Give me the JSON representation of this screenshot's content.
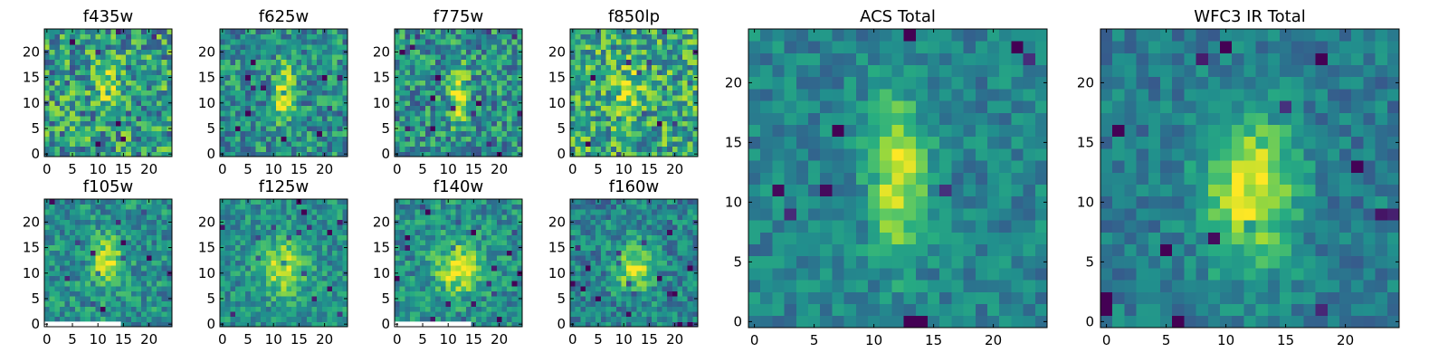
{
  "chart_data": [
    {
      "type": "heatmap",
      "title": "f435w",
      "grid": "25x25",
      "xlim": [
        -0.5,
        24.5
      ],
      "ylim": [
        -0.5,
        24.5
      ],
      "xticks": [
        0,
        5,
        10,
        15,
        20
      ],
      "yticks": [
        0,
        5,
        10,
        15,
        20
      ],
      "source": {
        "cx": 12,
        "cy": 14,
        "sx": 1.6,
        "sy": 3.0,
        "amp": 0.3
      },
      "noise": 0.32,
      "base": 0.55,
      "seed": 11,
      "colormap": "viridis"
    },
    {
      "type": "heatmap",
      "title": "f625w",
      "grid": "25x25",
      "xlim": [
        -0.5,
        24.5
      ],
      "ylim": [
        -0.5,
        24.5
      ],
      "xticks": [
        0,
        5,
        10,
        15,
        20
      ],
      "yticks": [
        0,
        5,
        10,
        15,
        20
      ],
      "source": {
        "cx": 12,
        "cy": 12,
        "sx": 1.3,
        "sy": 4.0,
        "amp": 0.5
      },
      "noise": 0.25,
      "base": 0.5,
      "seed": 23,
      "colormap": "viridis"
    },
    {
      "type": "heatmap",
      "title": "f775w",
      "grid": "25x25",
      "xlim": [
        -0.5,
        24.5
      ],
      "ylim": [
        -0.5,
        24.5
      ],
      "xticks": [
        0,
        5,
        10,
        15,
        20
      ],
      "yticks": [
        0,
        5,
        10,
        15,
        20
      ],
      "source": {
        "cx": 12,
        "cy": 12,
        "sx": 1.3,
        "sy": 4.0,
        "amp": 0.45
      },
      "noise": 0.27,
      "base": 0.5,
      "seed": 37,
      "colormap": "viridis"
    },
    {
      "type": "heatmap",
      "title": "f850lp",
      "grid": "25x25",
      "xlim": [
        -0.5,
        24.5
      ],
      "ylim": [
        -0.5,
        24.5
      ],
      "xticks": [
        0,
        5,
        10,
        15,
        20
      ],
      "yticks": [
        0,
        5,
        10,
        15,
        20
      ],
      "source": {
        "cx": 11,
        "cy": 12,
        "sx": 1.8,
        "sy": 3.5,
        "amp": 0.25
      },
      "noise": 0.3,
      "base": 0.6,
      "seed": 41,
      "colormap": "viridis"
    },
    {
      "type": "heatmap",
      "title": "f105w",
      "grid": "25x25",
      "xlim": [
        -0.5,
        24.5
      ],
      "ylim": [
        -0.5,
        24.5
      ],
      "xticks": [
        0,
        5,
        10,
        15,
        20
      ],
      "yticks": [
        0,
        5,
        10,
        15,
        20
      ],
      "source": {
        "cx": 12,
        "cy": 12,
        "sx": 2.0,
        "sy": 3.5,
        "amp": 0.45
      },
      "noise": 0.2,
      "base": 0.5,
      "seed": 53,
      "colormap": "viridis",
      "mask": {
        "x0": -0.5,
        "x1": 14.5,
        "y0": -0.5,
        "y1": 0.5,
        "color": "#ffffff"
      }
    },
    {
      "type": "heatmap",
      "title": "f125w",
      "grid": "25x25",
      "xlim": [
        -0.5,
        24.5
      ],
      "ylim": [
        -0.5,
        24.5
      ],
      "xticks": [
        0,
        5,
        10,
        15,
        20
      ],
      "yticks": [
        0,
        5,
        10,
        15,
        20
      ],
      "source": {
        "cx": 12,
        "cy": 11,
        "sx": 3.0,
        "sy": 3.5,
        "amp": 0.45
      },
      "noise": 0.18,
      "base": 0.5,
      "seed": 61,
      "colormap": "viridis"
    },
    {
      "type": "heatmap",
      "title": "f140w",
      "grid": "25x25",
      "xlim": [
        -0.5,
        24.5
      ],
      "ylim": [
        -0.5,
        24.5
      ],
      "xticks": [
        0,
        5,
        10,
        15,
        20
      ],
      "yticks": [
        0,
        5,
        10,
        15,
        20
      ],
      "source": {
        "cx": 12,
        "cy": 11,
        "sx": 3.0,
        "sy": 3.5,
        "amp": 0.45
      },
      "noise": 0.2,
      "base": 0.5,
      "seed": 71,
      "colormap": "viridis",
      "mask": {
        "x0": -0.5,
        "x1": 14.5,
        "y0": -0.5,
        "y1": 0.5,
        "color": "#ffffff"
      }
    },
    {
      "type": "heatmap",
      "title": "f160w",
      "grid": "25x25",
      "xlim": [
        -0.5,
        24.5
      ],
      "ylim": [
        -0.5,
        24.5
      ],
      "xticks": [
        0,
        5,
        10,
        15,
        20
      ],
      "yticks": [
        0,
        5,
        10,
        15,
        20
      ],
      "source": {
        "cx": 12,
        "cy": 11,
        "sx": 2.5,
        "sy": 3.5,
        "amp": 0.45
      },
      "noise": 0.2,
      "base": 0.45,
      "seed": 83,
      "colormap": "viridis"
    },
    {
      "type": "heatmap",
      "title": "ACS Total",
      "grid": "25x25",
      "xlim": [
        -0.5,
        24.5
      ],
      "ylim": [
        -0.5,
        24.5
      ],
      "xticks": [
        0,
        5,
        10,
        15,
        20
      ],
      "yticks": [
        0,
        5,
        10,
        15,
        20
      ],
      "source": {
        "cx": 12,
        "cy": 12,
        "sx": 1.6,
        "sy": 4.5,
        "amp": 0.5
      },
      "noise": 0.14,
      "base": 0.45,
      "seed": 97,
      "colormap": "viridis"
    },
    {
      "type": "heatmap",
      "title": "WFC3 IR Total",
      "grid": "25x25",
      "xlim": [
        -0.5,
        24.5
      ],
      "ylim": [
        -0.5,
        24.5
      ],
      "xticks": [
        0,
        5,
        10,
        15,
        20
      ],
      "yticks": [
        0,
        5,
        10,
        15,
        20
      ],
      "source": {
        "cx": 12,
        "cy": 11,
        "sx": 2.6,
        "sy": 4.5,
        "amp": 0.55
      },
      "noise": 0.14,
      "base": 0.42,
      "seed": 101,
      "colormap": "viridis"
    }
  ]
}
